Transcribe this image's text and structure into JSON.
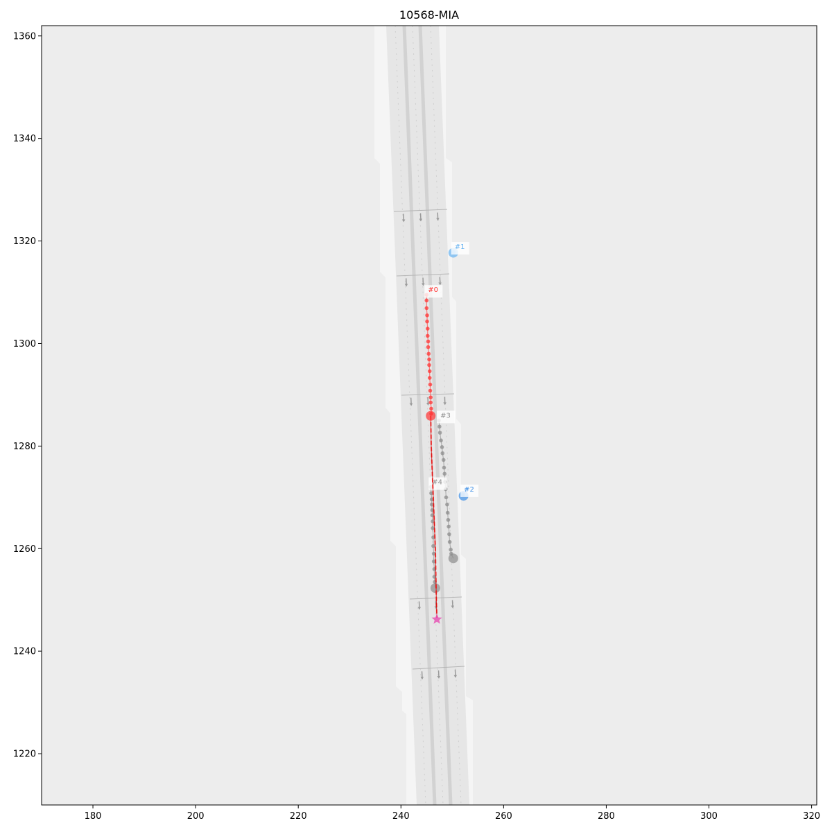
{
  "title": "10568-MIA",
  "axes": {
    "xlim": [
      170,
      321
    ],
    "ylim": [
      1210,
      1362
    ],
    "x_ticks": [
      180,
      200,
      220,
      240,
      260,
      280,
      300,
      320
    ],
    "y_ticks": [
      1220,
      1240,
      1260,
      1280,
      1300,
      1320,
      1340,
      1360
    ]
  },
  "colors": {
    "background": "#ededed",
    "road_shoulder": "#f5f5f5",
    "road_surface": "#e6e6e6",
    "ego": "#ff3333",
    "blue_agent": "#3d8fe6",
    "light_blue_agent": "#66b3f2",
    "gray_agent": "#8c8c8c",
    "goal": "#e655b5"
  },
  "chart_data": {
    "type": "scatter",
    "title": "10568-MIA",
    "xlim": [
      170,
      321
    ],
    "ylim": [
      1210,
      1362
    ],
    "agents": [
      {
        "label": "#0",
        "color": "#ff3333",
        "history": [
          [
            245.0,
            1309.5
          ],
          [
            245.0,
            1308.4
          ],
          [
            245.0,
            1306.9
          ],
          [
            245.1,
            1305.5
          ],
          [
            245.1,
            1304.3
          ],
          [
            245.2,
            1302.9
          ],
          [
            245.2,
            1301.5
          ],
          [
            245.3,
            1300.4
          ],
          [
            245.3,
            1299.3
          ],
          [
            245.4,
            1298.0
          ],
          [
            245.5,
            1296.9
          ],
          [
            245.5,
            1295.8
          ],
          [
            245.6,
            1294.6
          ],
          [
            245.6,
            1293.3
          ],
          [
            245.7,
            1292.0
          ],
          [
            245.7,
            1290.8
          ],
          [
            245.8,
            1289.5
          ],
          [
            245.8,
            1288.5
          ],
          [
            245.9,
            1287.3
          ],
          [
            245.9,
            1286.3
          ]
        ],
        "current": [
          245.8,
          1285.9
        ],
        "future": [
          [
            245.9,
            1280
          ],
          [
            246.1,
            1275
          ],
          [
            246.3,
            1270
          ],
          [
            246.5,
            1265
          ],
          [
            246.7,
            1260
          ],
          [
            246.8,
            1255
          ],
          [
            246.9,
            1250
          ],
          [
            247.0,
            1246.5
          ]
        ],
        "goal": [
          247.0,
          1246.2
        ]
      },
      {
        "label": "#1",
        "color": "#66b3f2",
        "history": [
          [
            250.2,
            1317.9
          ],
          [
            250.3,
            1317.8
          ]
        ],
        "current": [
          250.2,
          1317.7
        ]
      },
      {
        "label": "#2",
        "color": "#3d8fe6",
        "history": [
          [
            252.0,
            1270.6
          ],
          [
            252.1,
            1270.5
          ]
        ],
        "current": [
          252.2,
          1270.3
        ]
      },
      {
        "label": "#3",
        "color": "#8c8c8c",
        "history": [
          [
            247.4,
            1285.0
          ],
          [
            247.5,
            1283.8
          ],
          [
            247.6,
            1282.6
          ],
          [
            247.8,
            1281.1
          ],
          [
            248.0,
            1279.8
          ],
          [
            248.1,
            1278.6
          ],
          [
            248.3,
            1277.3
          ],
          [
            248.4,
            1275.8
          ],
          [
            248.5,
            1274.6
          ],
          [
            248.6,
            1273.0
          ],
          [
            248.7,
            1271.6
          ],
          [
            248.8,
            1270.0
          ],
          [
            249.0,
            1268.6
          ],
          [
            249.1,
            1267.0
          ],
          [
            249.2,
            1265.6
          ],
          [
            249.3,
            1264.3
          ],
          [
            249.4,
            1262.8
          ],
          [
            249.5,
            1261.3
          ],
          [
            249.7,
            1259.8
          ],
          [
            249.8,
            1259.0
          ]
        ],
        "current": [
          250.2,
          1258.1
        ]
      },
      {
        "label": "#4",
        "color": "#8c8c8c",
        "history": [
          [
            245.8,
            1272.0
          ],
          [
            245.9,
            1270.8
          ],
          [
            246.0,
            1269.6
          ],
          [
            246.0,
            1268.6
          ],
          [
            246.1,
            1267.5
          ],
          [
            246.1,
            1266.5
          ],
          [
            246.2,
            1265.3
          ],
          [
            246.2,
            1264.0
          ],
          [
            246.3,
            1262.2
          ],
          [
            246.3,
            1260.5
          ],
          [
            246.4,
            1259.0
          ],
          [
            246.4,
            1257.5
          ],
          [
            246.5,
            1256.0
          ],
          [
            246.5,
            1254.5
          ],
          [
            246.6,
            1253.5
          ]
        ],
        "current": [
          246.7,
          1252.3
        ]
      }
    ]
  }
}
